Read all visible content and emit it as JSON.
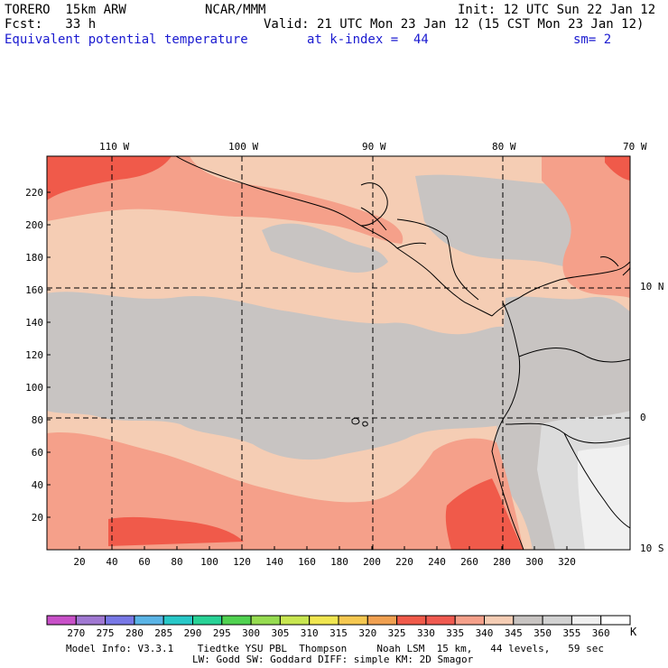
{
  "header": {
    "model": "TORERO  15km ARW",
    "center": "NCAR/MMM",
    "init": "Init: 12 UTC Sun 22 Jan 12",
    "fcst": "Fcst:   33 h",
    "valid": "Valid: 21 UTC Mon 23 Jan 12 (15 CST Mon 23 Jan 12)",
    "field": "Equivalent potential temperature",
    "level": "at k-index =  44",
    "smooth": "sm= 2"
  },
  "map": {
    "lon_labels": [
      "110 W",
      "100 W",
      "90 W",
      "80 W",
      "70 W"
    ],
    "lat_labels": [
      "10 N",
      "0",
      "10 S"
    ],
    "y_ticks": [
      20,
      40,
      60,
      80,
      100,
      120,
      140,
      160,
      180,
      200,
      220
    ],
    "x_ticks": [
      20,
      40,
      60,
      80,
      100,
      120,
      140,
      160,
      180,
      200,
      220,
      240,
      260,
      280,
      300,
      320
    ]
  },
  "colorbar": {
    "labels": [
      "270",
      "275",
      "280",
      "285",
      "290",
      "295",
      "300",
      "305",
      "310",
      "315",
      "320",
      "325",
      "330",
      "335",
      "340",
      "345",
      "350",
      "355",
      "360"
    ],
    "unit": "K",
    "colors": [
      "#c850c8",
      "#a078d2",
      "#7878e6",
      "#5ab4e6",
      "#28c8c8",
      "#28d296",
      "#50d250",
      "#96dc50",
      "#c8e650",
      "#f0e650",
      "#f5c850",
      "#f0a050",
      "#f05a4a",
      "#f05a50",
      "#f5a08a",
      "#f5cdb4",
      "#c8c4c2",
      "#d2d2d2",
      "#f0f0f0"
    ]
  },
  "footer": {
    "line1": "Model Info: V3.3.1    Tiedtke YSU PBL  Thompson     Noah LSM  15 km,   44 levels,   59 sec",
    "line2": "LW: Godd SW: Goddard DIFF: simple KM: 2D Smagor"
  }
}
